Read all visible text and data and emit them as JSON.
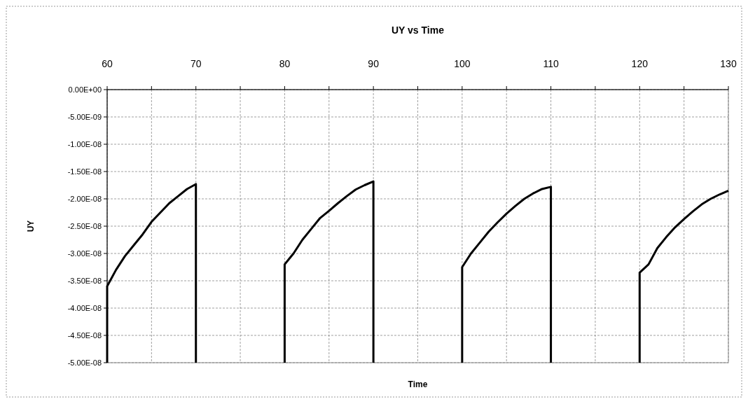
{
  "chart_data": {
    "type": "line",
    "title": "UY vs Time",
    "xlabel": "Time",
    "ylabel": "UY",
    "series": [
      {
        "color": "#000000",
        "x": [
          60,
          60,
          61,
          62,
          63,
          64,
          65,
          66,
          67,
          68,
          69,
          70,
          70,
          75,
          80,
          80,
          80.5,
          81,
          82,
          83,
          84,
          85,
          86,
          87,
          88,
          89,
          90,
          90,
          95,
          100,
          100,
          101,
          102,
          103,
          104,
          105,
          106,
          107,
          108,
          109,
          110,
          110,
          115,
          120,
          120,
          121,
          122,
          123,
          124,
          125,
          126,
          127,
          128,
          129,
          130
        ],
        "values": [
          -5e-08,
          -3.6e-08,
          -3.3e-08,
          -3.05e-08,
          -2.85e-08,
          -2.65e-08,
          -2.42e-08,
          -2.25e-08,
          -2.08e-08,
          -1.95e-08,
          -1.82e-08,
          -1.73e-08,
          -5e-08,
          null,
          -5e-08,
          -3.2e-08,
          -3.1e-08,
          -3e-08,
          -2.75e-08,
          -2.55e-08,
          -2.35e-08,
          -2.22e-08,
          -2.08e-08,
          -1.95e-08,
          -1.83e-08,
          -1.75e-08,
          -1.68e-08,
          -5e-08,
          null,
          -5e-08,
          -3.25e-08,
          -3e-08,
          -2.8e-08,
          -2.6e-08,
          -2.43e-08,
          -2.27e-08,
          -2.13e-08,
          -2e-08,
          -1.9e-08,
          -1.82e-08,
          -1.78e-08,
          -5e-08,
          null,
          -5e-08,
          -3.35e-08,
          -3.2e-08,
          -2.9e-08,
          -2.7e-08,
          -2.52e-08,
          -2.37e-08,
          -2.23e-08,
          -2.1e-08,
          -2e-08,
          -1.92e-08,
          -1.85e-08
        ]
      }
    ],
    "xlim": [
      60,
      130
    ],
    "xticks": [
      60,
      {
        "value": 65,
        "label": null
      },
      70,
      {
        "value": 75,
        "label": null
      },
      80,
      {
        "value": 85,
        "label": null
      },
      90,
      {
        "value": 95,
        "label": null
      },
      100,
      {
        "value": 105,
        "label": null
      },
      110,
      {
        "value": 115,
        "label": null
      },
      120,
      {
        "value": 125,
        "label": null
      },
      130
    ],
    "ylim": [
      -5e-08,
      0
    ],
    "yticks": [
      {
        "value": 0,
        "label": "0.00E+00"
      },
      {
        "value": -5e-09,
        "label": "-5.00E-09"
      },
      {
        "value": -1e-08,
        "label": "-1.00E-08"
      },
      {
        "value": -1.5e-08,
        "label": "-1.50E-08"
      },
      {
        "value": -2e-08,
        "label": "-2.00E-08"
      },
      {
        "value": -2.5e-08,
        "label": "-2.50E-08"
      },
      {
        "value": -3e-08,
        "label": "-3.00E-08"
      },
      {
        "value": -3.5e-08,
        "label": "-3.50E-08"
      },
      {
        "value": -4e-08,
        "label": "-4.00E-08"
      },
      {
        "value": -4.5e-08,
        "label": "-4.50E-08"
      },
      {
        "value": -5e-08,
        "label": "-5.00E-08"
      }
    ],
    "grid": true,
    "marker": "none",
    "line_style": "solid"
  }
}
